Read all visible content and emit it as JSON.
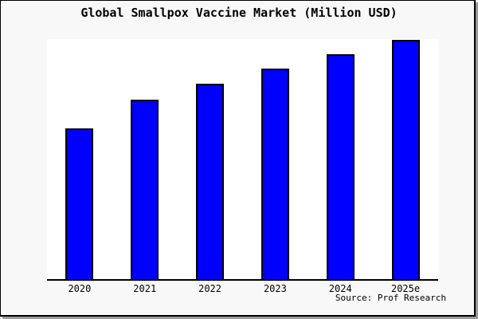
{
  "title": "Global Smallpox Vaccine Market (Million USD)",
  "source_note": "Source: Prof Research",
  "colors": {
    "bar_fill": "#0000ff",
    "bar_edge": "#000000",
    "figure_bg": "#f8f8f8",
    "plot_bg": "#ffffff",
    "axis": "#000000",
    "frame_border": "#000000",
    "frame_shadow": "#9b9b9b",
    "text": "#000000"
  },
  "chart_data": {
    "type": "bar",
    "title": "Global Smallpox Vaccine Market (Million USD)",
    "categories": [
      "2020",
      "2021",
      "2022",
      "2023",
      "2024",
      "2025e"
    ],
    "values": [
      62.8,
      74.8,
      81.4,
      87.7,
      93.7,
      99.7
    ],
    "value_unit": "percent_of_plot_height",
    "note": "No y-axis ticks, labels, or gridlines are shown; values are relative bar heights estimated from pixels",
    "xlabel": "",
    "ylabel": "",
    "ylim": [
      0,
      100
    ],
    "grid": false,
    "legend": null,
    "legend_position": "none",
    "bar_color": "#0000ff",
    "bar_edge_color": "#000000",
    "annotations": [
      "Source: Prof Research"
    ]
  }
}
